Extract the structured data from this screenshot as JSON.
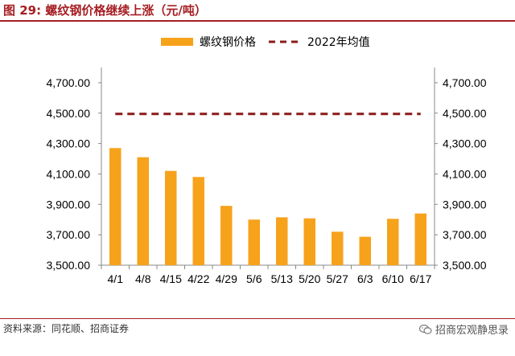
{
  "figure": {
    "label": "图 29:",
    "title": "螺纹钢价格继续上涨（元/吨）"
  },
  "footer": {
    "source": "资料来源：同花顺、招商证券",
    "watermark": "招商宏观静思录",
    "watermark_icon": "wechat-icon"
  },
  "colors": {
    "accent": "#a61e22",
    "bar": "#f7a21b",
    "avg_line": "#8b1a1a"
  },
  "chart_data": {
    "type": "bar",
    "categories": [
      "4/1",
      "4/8",
      "4/15",
      "4/22",
      "4/29",
      "5/6",
      "5/13",
      "5/20",
      "5/27",
      "6/3",
      "6/10",
      "6/17"
    ],
    "series": [
      {
        "name": "螺纹钢价格",
        "type": "bar",
        "values": [
          4270,
          4210,
          4120,
          4080,
          3890,
          3800,
          3815,
          3808,
          3720,
          3687,
          3805,
          3840
        ]
      },
      {
        "name": "2022年均值",
        "type": "line",
        "style": "dashed",
        "values": [
          4495,
          4495,
          4495,
          4495,
          4495,
          4495,
          4495,
          4495,
          4495,
          4495,
          4495,
          4495
        ]
      }
    ],
    "ylim": [
      3500,
      4800
    ],
    "yticks": [
      "3,500.00",
      "3,700.00",
      "3,900.00",
      "4,100.00",
      "4,300.00",
      "4,500.00",
      "4,700.00"
    ],
    "ytick_values": [
      3500,
      3700,
      3900,
      4100,
      4300,
      4500,
      4700
    ],
    "secondary_axis": true,
    "legend_position": "top-center",
    "grid": false
  }
}
